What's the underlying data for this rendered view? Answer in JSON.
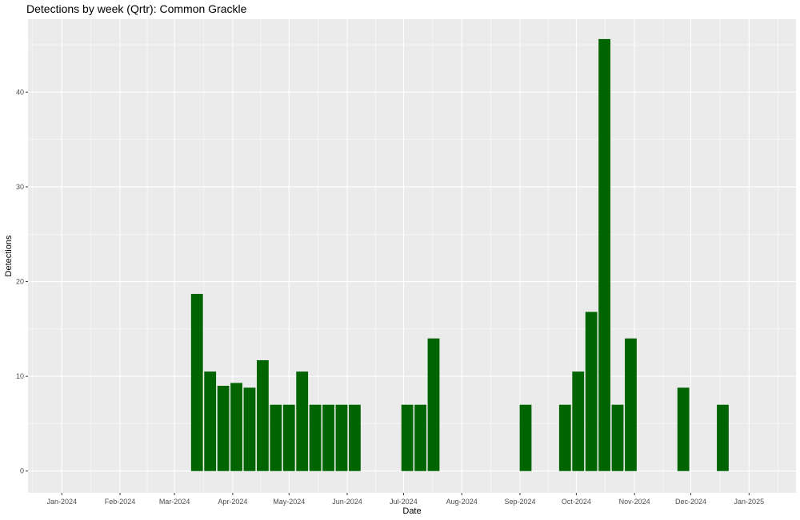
{
  "chart_data": {
    "type": "bar",
    "title": "Detections by week (Qrtr): Common Grackle",
    "xlabel": "Date",
    "ylabel": "Detections",
    "x_tick_labels": [
      "Jan-2024",
      "Feb-2024",
      "Mar-2024",
      "Apr-2024",
      "May-2024",
      "Jun-2024",
      "Jul-2024",
      "Aug-2024",
      "Sep-2024",
      "Oct-2024",
      "Nov-2024",
      "Dec-2024",
      "Jan-2025"
    ],
    "x_tick_dates": [
      "2024-01-01",
      "2024-02-01",
      "2024-03-01",
      "2024-04-01",
      "2024-05-01",
      "2024-06-01",
      "2024-07-01",
      "2024-08-01",
      "2024-09-01",
      "2024-10-01",
      "2024-11-01",
      "2024-12-01",
      "2025-01-01"
    ],
    "xlim": [
      "2023-12-14",
      "2025-01-26"
    ],
    "y_ticks": [
      0,
      10,
      20,
      30,
      40
    ],
    "ylim": [
      -2.3,
      47.7
    ],
    "bar_color": "#006400",
    "panel_color": "#ebebeb",
    "grid_color": "#ffffff",
    "grid": true,
    "legend": "none",
    "bars": [
      {
        "x": "2024-03-13",
        "y": 18.7
      },
      {
        "x": "2024-03-20",
        "y": 10.5
      },
      {
        "x": "2024-03-27",
        "y": 9.0
      },
      {
        "x": "2024-04-03",
        "y": 9.3
      },
      {
        "x": "2024-04-10",
        "y": 8.8
      },
      {
        "x": "2024-04-17",
        "y": 11.7
      },
      {
        "x": "2024-04-24",
        "y": 7.0
      },
      {
        "x": "2024-05-01",
        "y": 7.0
      },
      {
        "x": "2024-05-08",
        "y": 10.5
      },
      {
        "x": "2024-05-15",
        "y": 7.0
      },
      {
        "x": "2024-05-22",
        "y": 7.0
      },
      {
        "x": "2024-05-29",
        "y": 7.0
      },
      {
        "x": "2024-06-05",
        "y": 7.0
      },
      {
        "x": "2024-07-03",
        "y": 7.0
      },
      {
        "x": "2024-07-10",
        "y": 7.0
      },
      {
        "x": "2024-07-17",
        "y": 14.0
      },
      {
        "x": "2024-09-04",
        "y": 7.0
      },
      {
        "x": "2024-09-25",
        "y": 7.0
      },
      {
        "x": "2024-10-02",
        "y": 10.5
      },
      {
        "x": "2024-10-09",
        "y": 16.8
      },
      {
        "x": "2024-10-16",
        "y": 45.6
      },
      {
        "x": "2024-10-23",
        "y": 7.0
      },
      {
        "x": "2024-10-30",
        "y": 14.0
      },
      {
        "x": "2024-11-27",
        "y": 8.8
      },
      {
        "x": "2024-12-18",
        "y": 7.0
      }
    ]
  }
}
